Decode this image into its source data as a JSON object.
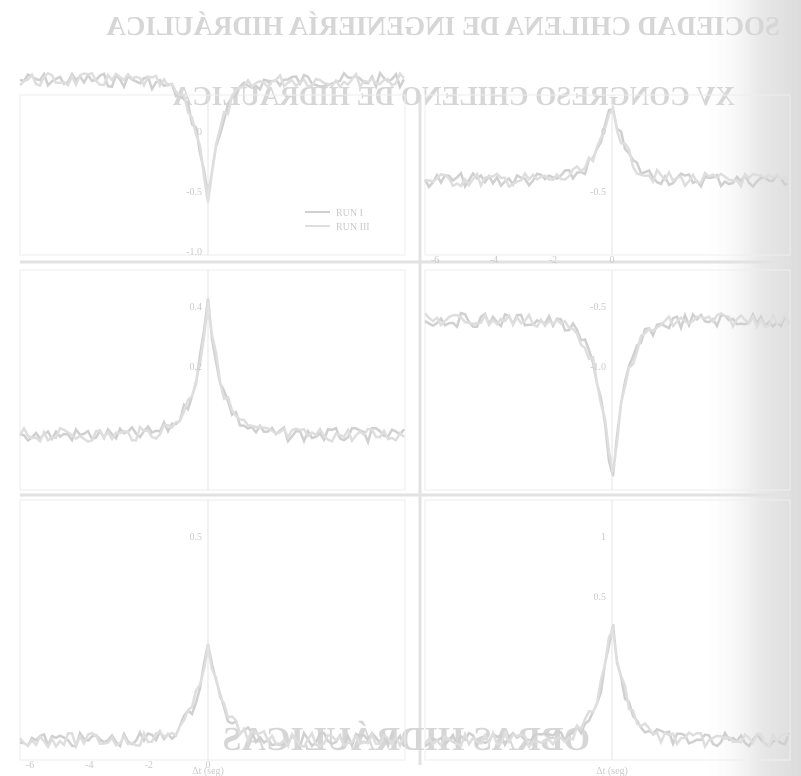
{
  "header": {
    "society": "SOCIEDAD CHILENA DE INGENIERÍA HIDRÁULICA",
    "congress": "XV CONGRESO CHILENO DE HIDRÁULICA"
  },
  "figure": {
    "legend": [
      "RUN I",
      "RUN III"
    ],
    "panels": [
      {
        "y_ticks": [
          "0",
          "-0.5",
          "-1.0"
        ]
      },
      {
        "y_ticks": [
          "0",
          "-0.5"
        ],
        "x_ticks": [
          "-6",
          "-4",
          "-2",
          "0"
        ]
      },
      {
        "y_ticks": [
          "0.4",
          "0.2"
        ]
      },
      {
        "y_ticks": [
          "-0.5",
          "-1.0"
        ]
      },
      {
        "y_ticks": [
          "0.5"
        ],
        "x_ticks": [
          "-6",
          "-4",
          "-2",
          "0"
        ],
        "x_label": "Δt (seg)"
      },
      {
        "y_ticks": [
          "1",
          "0.5"
        ],
        "x_label": "Δt (seg)"
      }
    ]
  },
  "footer": {
    "section": "OBRAS HIDRÁULICAS"
  }
}
